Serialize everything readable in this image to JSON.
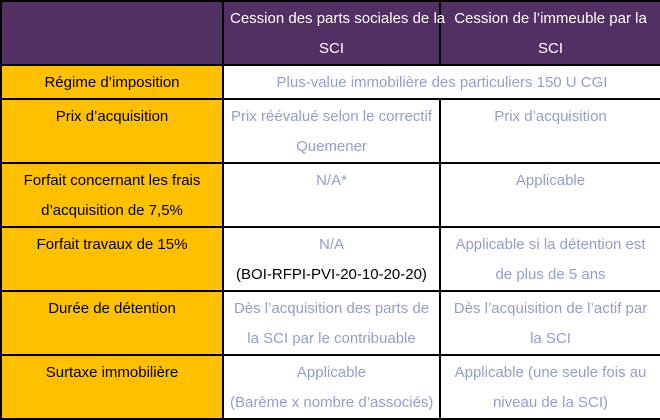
{
  "colors": {
    "header_bg": "#523063",
    "header_text": "#ffffff",
    "label_bg": "#ffc000",
    "label_text": "#000000",
    "value_text": "#949ec9",
    "value_dark_text": "#000000",
    "border": "#000000",
    "cell_bg": "#ffffff"
  },
  "table": {
    "header": [
      {
        "lines": []
      },
      {
        "lines": [
          "Cession des parts sociales de la",
          "SCI"
        ]
      },
      {
        "lines": [
          "Cession de l’immeuble par la",
          "SCI"
        ]
      }
    ],
    "rows": [
      {
        "key": "regime",
        "label_lines": [
          "Régime d’imposition"
        ],
        "cells": [
          {
            "colspan": 2,
            "lines": [
              "Plus-value immobilière des particuliers 150 U CGI"
            ]
          }
        ]
      },
      {
        "key": "prix",
        "label_lines": [
          "Prix d’acquisition"
        ],
        "cells": [
          {
            "lines": [
              "Prix réévalué selon le correctif",
              "Quemener"
            ]
          },
          {
            "lines": [
              "Prix d’acquisition"
            ]
          }
        ]
      },
      {
        "key": "frais",
        "label_lines": [
          "Forfait concernant les frais",
          "d’acquisition de 7,5%"
        ],
        "cells": [
          {
            "lines": [
              "N/A*"
            ]
          },
          {
            "lines": [
              "Applicable"
            ]
          }
        ]
      },
      {
        "key": "travaux",
        "label_lines": [
          "Forfait travaux de 15%"
        ],
        "cells": [
          {
            "lines": [
              "N/A",
              {
                "text": "(BOI-RFPI-PVI-20-10-20-20)",
                "dark": true
              }
            ]
          },
          {
            "lines": [
              "Applicable si la détention est",
              "de plus de 5 ans"
            ]
          }
        ]
      },
      {
        "key": "duree",
        "label_lines": [
          "Durée de détention"
        ],
        "cells": [
          {
            "lines": [
              "Dès l’acquisition des parts de",
              "la SCI par le contribuable"
            ]
          },
          {
            "lines": [
              "Dès l’acquisition de l’actif par",
              "la SCI"
            ]
          }
        ]
      },
      {
        "key": "surtaxe",
        "label_lines": [
          "Surtaxe immobilière"
        ],
        "cells": [
          {
            "lines": [
              "Applicable",
              "(Barème x nombre d’associés)"
            ]
          },
          {
            "lines": [
              "Applicable (une seule fois au",
              "niveau de la SCI)"
            ]
          }
        ]
      }
    ]
  }
}
